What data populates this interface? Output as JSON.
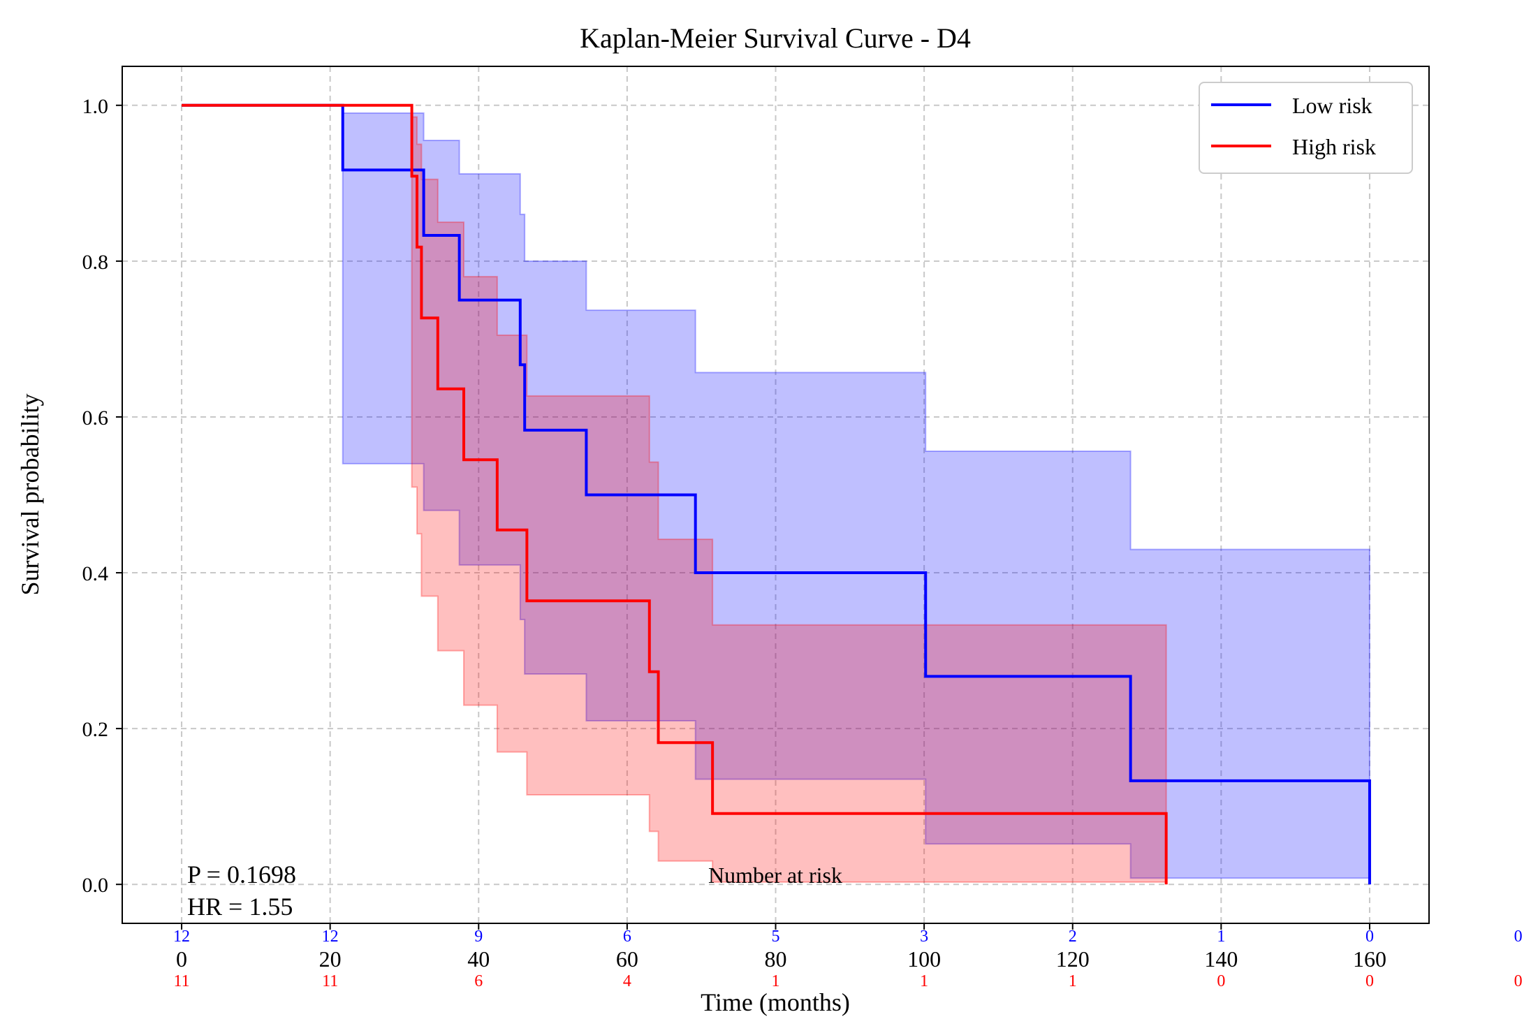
{
  "chart_data": {
    "type": "line",
    "title": "Kaplan-Meier Survival Curve - D4",
    "xlabel": "Time (months)",
    "ylabel": "Survival probability",
    "xlim": [
      -8,
      168
    ],
    "ylim": [
      -0.05,
      1.05
    ],
    "xticks": [
      0,
      20,
      40,
      60,
      80,
      100,
      120,
      140,
      160
    ],
    "xtick_labels": [
      "0",
      "20",
      "40",
      "60",
      "80",
      "100",
      "120",
      "140",
      "160"
    ],
    "yticks": [
      0.0,
      0.2,
      0.4,
      0.6,
      0.8,
      1.0
    ],
    "ytick_labels": [
      "0.0",
      "0.2",
      "0.4",
      "0.6",
      "0.8",
      "1.0"
    ],
    "grid": true,
    "legend_position": "top-right",
    "series": [
      {
        "name": "Low risk",
        "color": "#0000ff",
        "band_color": "#0000ff",
        "x": [
          0,
          21.7,
          32.6,
          37.4,
          45.6,
          46.2,
          54.5,
          69.2,
          100.2,
          127.8,
          160.0
        ],
        "y": [
          1.0,
          0.917,
          0.833,
          0.75,
          0.667,
          0.583,
          0.5,
          0.4,
          0.267,
          0.133,
          0.0
        ],
        "ci_x": [
          21.7,
          32.6,
          37.4,
          45.6,
          46.2,
          54.5,
          69.2,
          100.2,
          127.8,
          160.0
        ],
        "ci_lower": [
          0.54,
          0.48,
          0.41,
          0.34,
          0.27,
          0.21,
          0.135,
          0.052,
          0.008,
          0.008
        ],
        "ci_upper": [
          0.99,
          0.955,
          0.912,
          0.86,
          0.8,
          0.737,
          0.657,
          0.556,
          0.43,
          0.43
        ]
      },
      {
        "name": "High risk",
        "color": "#ff0000",
        "band_color": "#ff0000",
        "x": [
          0,
          31.0,
          31.7,
          32.3,
          34.5,
          38.0,
          42.5,
          46.5,
          63.0,
          64.2,
          71.5,
          132.6
        ],
        "y": [
          1.0,
          0.909,
          0.818,
          0.727,
          0.636,
          0.545,
          0.455,
          0.364,
          0.273,
          0.182,
          0.091,
          0.0
        ],
        "ci_x": [
          31.0,
          31.7,
          32.3,
          34.5,
          38.0,
          42.5,
          46.5,
          63.0,
          64.2,
          71.5,
          132.6
        ],
        "ci_lower": [
          0.51,
          0.45,
          0.37,
          0.3,
          0.23,
          0.17,
          0.115,
          0.068,
          0.03,
          0.003,
          0.003
        ],
        "ci_upper": [
          0.985,
          0.95,
          0.905,
          0.85,
          0.78,
          0.705,
          0.627,
          0.542,
          0.443,
          0.333,
          0.333
        ]
      }
    ],
    "annotations": {
      "p_value": "P = 0.1698",
      "hazard_ratio": "HR = 1.55",
      "risk_table_title": "Number at risk"
    },
    "risk_table": {
      "times": [
        0,
        20,
        40,
        60,
        80,
        100,
        120,
        140,
        160,
        180
      ],
      "low": [
        "12",
        "12",
        "9",
        "6",
        "5",
        "3",
        "2",
        "1",
        "0",
        "0"
      ],
      "high": [
        "11",
        "11",
        "6",
        "4",
        "1",
        "1",
        "1",
        "0",
        "0",
        "0"
      ],
      "low_color": "#0000ff",
      "high_color": "#ff0000"
    }
  }
}
